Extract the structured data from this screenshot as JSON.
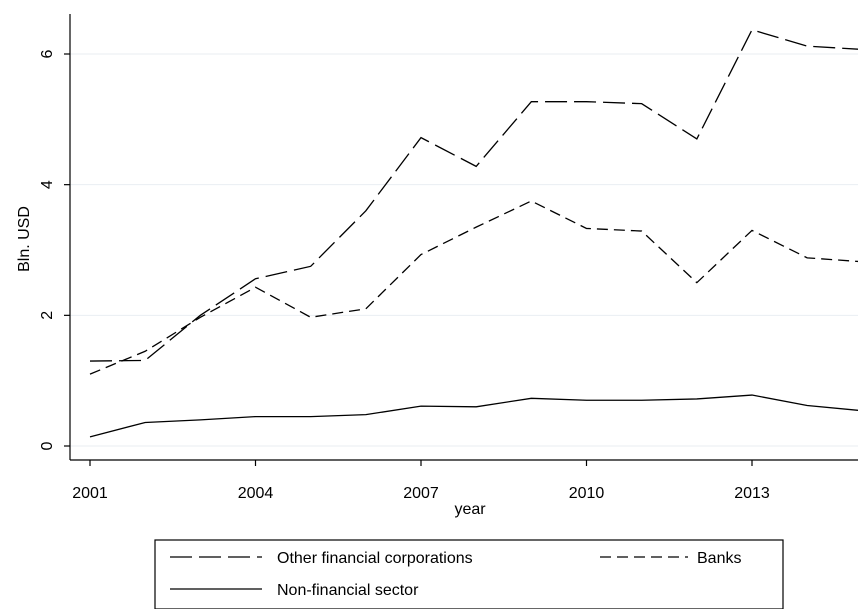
{
  "chart_data": {
    "type": "line",
    "xlabel": "year",
    "ylabel": "Bln. USD",
    "xlim": [
      2001,
      2015
    ],
    "ylim": [
      0,
      6.4
    ],
    "x_ticks": [
      2001,
      2004,
      2007,
      2010,
      2013
    ],
    "y_ticks": [
      0,
      2,
      4,
      6
    ],
    "grid": "horizontal",
    "legend_position": "bottom",
    "x": [
      2001,
      2002,
      2003,
      2004,
      2005,
      2006,
      2007,
      2008,
      2009,
      2010,
      2011,
      2012,
      2013,
      2014,
      2015
    ],
    "series": [
      {
        "name": "Other financial corporations",
        "dash": "long-dash",
        "values": [
          1.3,
          1.31,
          2.0,
          2.56,
          2.75,
          3.6,
          4.72,
          4.28,
          5.27,
          5.27,
          5.24,
          4.7,
          6.37,
          6.12,
          6.07
        ]
      },
      {
        "name": "Banks",
        "dash": "short-dash",
        "values": [
          1.1,
          1.45,
          1.97,
          2.43,
          1.97,
          2.1,
          2.93,
          3.35,
          3.75,
          3.33,
          3.29,
          2.5,
          3.3,
          2.88,
          2.82
        ]
      },
      {
        "name": "Non-financial sector",
        "dash": "solid",
        "values": [
          0.14,
          0.36,
          0.4,
          0.45,
          0.45,
          0.48,
          0.61,
          0.6,
          0.73,
          0.7,
          0.7,
          0.72,
          0.78,
          0.62,
          0.54
        ]
      }
    ]
  }
}
